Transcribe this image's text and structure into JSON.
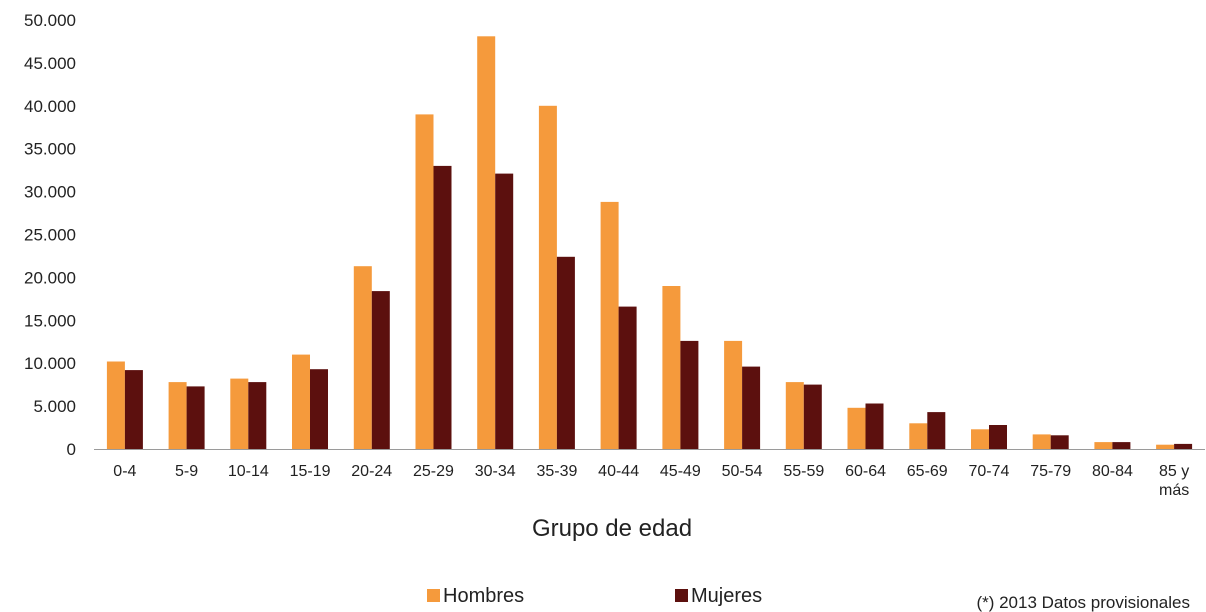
{
  "chart_data": {
    "type": "bar",
    "categories": [
      "0-4",
      "5-9",
      "10-14",
      "15-19",
      "20-24",
      "25-29",
      "30-34",
      "35-39",
      "40-44",
      "45-49",
      "50-54",
      "55-59",
      "60-64",
      "65-69",
      "70-74",
      "75-79",
      "80-84",
      "85 y más"
    ],
    "series": [
      {
        "name": "Hombres",
        "color": "#F59A3C",
        "values": [
          10200,
          7800,
          8200,
          11000,
          21300,
          39000,
          48100,
          40000,
          28800,
          19000,
          12600,
          7800,
          4800,
          3000,
          2300,
          1700,
          800,
          500
        ]
      },
      {
        "name": "Mujeres",
        "color": "#5C100E",
        "values": [
          9200,
          7300,
          7800,
          9300,
          18400,
          33000,
          32100,
          22400,
          16600,
          12600,
          9600,
          7500,
          5300,
          4300,
          2800,
          1600,
          800,
          600
        ]
      }
    ],
    "y_ticks": [
      "0",
      "5.000",
      "10.000",
      "15.000",
      "20.000",
      "25.000",
      "30.000",
      "35.000",
      "40.000",
      "45.000",
      "50.000"
    ],
    "ylim": [
      0,
      50000
    ],
    "xlabel": "Grupo de edad",
    "ylabel": "",
    "title": "",
    "legend": "bottom",
    "grid": false,
    "note": "(*) 2013 Datos provisionales"
  }
}
